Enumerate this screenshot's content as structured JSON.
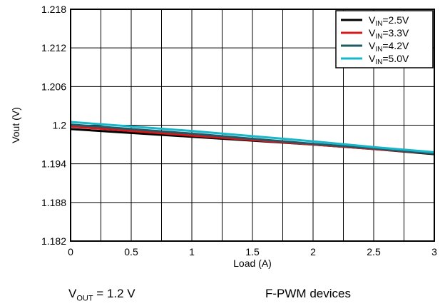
{
  "chart_data": {
    "type": "line",
    "xlabel": "Load (A)",
    "ylabel": "Vout (V)",
    "xlim": [
      0,
      3
    ],
    "ylim": [
      1.182,
      1.218
    ],
    "xticks": [
      "0",
      "0.5",
      "1",
      "1.5",
      "2",
      "2.5",
      "3"
    ],
    "yticks": [
      "1.182",
      "1.188",
      "1.194",
      "1.2",
      "1.206",
      "1.212",
      "1.218"
    ],
    "grid": true,
    "legend_position": "top-right",
    "x": [
      0,
      0.5,
      1,
      1.5,
      2,
      2.5,
      3
    ],
    "series": [
      {
        "name": "V_IN=2.5V",
        "label_main": "V",
        "label_sub": "IN",
        "label_rest": "=2.5V",
        "color": "#000000",
        "values": [
          1.1994,
          1.1988,
          1.1982,
          1.1976,
          1.197,
          1.1963,
          1.1955
        ]
      },
      {
        "name": "V_IN=3.3V",
        "label_main": "V",
        "label_sub": "IN",
        "label_rest": "=3.3V",
        "color": "#d7191c",
        "values": [
          1.1998,
          1.1991,
          1.1984,
          1.1977,
          1.197,
          1.1963,
          1.1956
        ]
      },
      {
        "name": "V_IN=4.2V",
        "label_main": "V",
        "label_sub": "IN",
        "label_rest": "=4.2V",
        "color": "#1f5a66",
        "values": [
          1.2001,
          1.1994,
          1.1987,
          1.1979,
          1.1971,
          1.1964,
          1.1956
        ]
      },
      {
        "name": "V_IN=5.0V",
        "label_main": "V",
        "label_sub": "IN",
        "label_rest": "=5.0V",
        "color": "#17b7c9",
        "values": [
          1.2005,
          1.1998,
          1.1991,
          1.1983,
          1.1975,
          1.1966,
          1.1958
        ]
      }
    ]
  },
  "footer": {
    "left_main": "V",
    "left_sub": "OUT",
    "left_rest": " = 1.2 V",
    "right": "F-PWM devices"
  }
}
